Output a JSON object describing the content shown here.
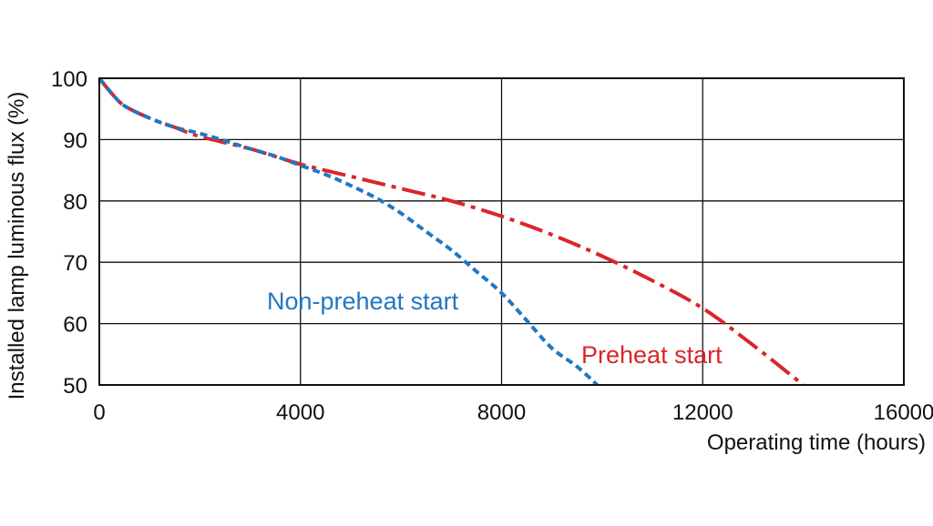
{
  "chart_data": {
    "type": "line",
    "xlabel": "Operating time (hours)",
    "ylabel": "Installed lamp luminous flux  (%)",
    "xlim": [
      0,
      16000
    ],
    "ylim": [
      50,
      100
    ],
    "x_ticks": [
      0,
      4000,
      8000,
      12000,
      16000
    ],
    "x_tick_labels": [
      "0",
      "4000",
      "8000",
      "12000",
      "16000"
    ],
    "y_ticks": [
      50,
      60,
      70,
      80,
      90,
      100
    ],
    "y_tick_labels": [
      "50",
      "60",
      "70",
      "80",
      "90",
      "100"
    ],
    "grid": true,
    "series": [
      {
        "name": "Non-preheat start",
        "color": "#2277c0",
        "line_style": "dashed",
        "points": [
          [
            0,
            100
          ],
          [
            250,
            97.5
          ],
          [
            500,
            95.5
          ],
          [
            1000,
            93.5
          ],
          [
            1500,
            92
          ],
          [
            2000,
            91
          ],
          [
            2500,
            89.8
          ],
          [
            3000,
            88.5
          ],
          [
            3500,
            87.3
          ],
          [
            4000,
            85.8
          ],
          [
            4500,
            84.3
          ],
          [
            5000,
            82.5
          ],
          [
            5500,
            80.5
          ],
          [
            6000,
            78
          ],
          [
            6500,
            75
          ],
          [
            7000,
            72
          ],
          [
            7500,
            68.5
          ],
          [
            8000,
            65
          ],
          [
            8500,
            60.5
          ],
          [
            9000,
            56
          ],
          [
            9500,
            53
          ],
          [
            9900,
            50
          ]
        ]
      },
      {
        "name": "Preheat start",
        "color": "#d9262a",
        "line_style": "dash-dot",
        "points": [
          [
            0,
            100
          ],
          [
            250,
            97.5
          ],
          [
            500,
            95.5
          ],
          [
            1000,
            93.5
          ],
          [
            1500,
            92
          ],
          [
            2000,
            90.5
          ],
          [
            3000,
            88.5
          ],
          [
            4000,
            86
          ],
          [
            5000,
            84
          ],
          [
            6000,
            82
          ],
          [
            7000,
            80
          ],
          [
            8000,
            77.5
          ],
          [
            9000,
            74.5
          ],
          [
            10000,
            71
          ],
          [
            11000,
            67
          ],
          [
            12000,
            62.5
          ],
          [
            13000,
            56.5
          ],
          [
            14000,
            50
          ]
        ]
      }
    ]
  }
}
